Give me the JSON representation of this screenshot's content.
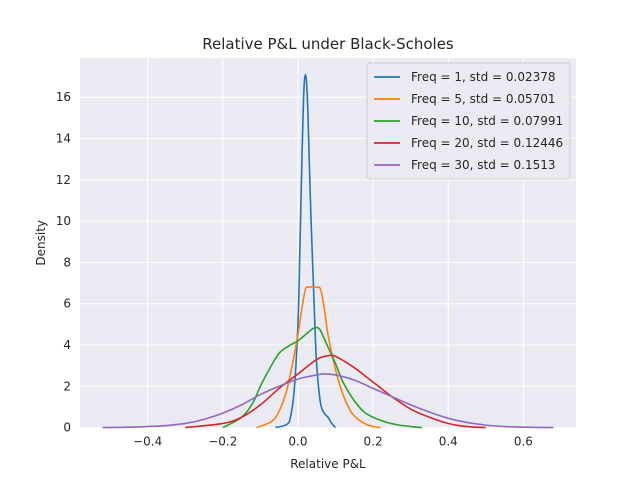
{
  "chart_data": {
    "type": "line",
    "title": "Relative P&L under Black-Scholes",
    "xlabel": "Relative P&L",
    "ylabel": "Density",
    "xlim": [
      -0.58,
      0.74
    ],
    "ylim": [
      0,
      17.9
    ],
    "x_ticks": [
      -0.4,
      -0.2,
      0.0,
      0.2,
      0.4,
      0.6
    ],
    "x_tick_labels": [
      "−0.4",
      "−0.2",
      "0.0",
      "0.2",
      "0.4",
      "0.6"
    ],
    "y_ticks": [
      0,
      2,
      4,
      6,
      8,
      10,
      12,
      14,
      16
    ],
    "y_tick_labels": [
      "0",
      "2",
      "4",
      "6",
      "8",
      "10",
      "12",
      "14",
      "16"
    ],
    "grid": true,
    "legend_position": "top-right",
    "series": [
      {
        "name": "Freq = 1, std = 0.02378",
        "color": "#1f77b4",
        "x": [
          -0.06,
          -0.03,
          -0.02,
          -0.01,
          0.0,
          0.005,
          0.01,
          0.015,
          0.02,
          0.025,
          0.03,
          0.035,
          0.04,
          0.045,
          0.05,
          0.06,
          0.07,
          0.08,
          0.09,
          0.1
        ],
        "y": [
          0.0,
          0.15,
          0.5,
          1.8,
          5.0,
          8.5,
          12.5,
          16.0,
          17.1,
          16.0,
          13.0,
          10.0,
          7.5,
          5.0,
          3.0,
          1.2,
          0.7,
          0.5,
          0.2,
          0.0
        ]
      },
      {
        "name": "Freq = 5, std = 0.05701",
        "color": "#ff7f0e",
        "x": [
          -0.11,
          -0.07,
          -0.05,
          -0.03,
          -0.01,
          0.0,
          0.01,
          0.02,
          0.03,
          0.05,
          0.06,
          0.07,
          0.08,
          0.1,
          0.12,
          0.14,
          0.16,
          0.19,
          0.22
        ],
        "y": [
          0.0,
          0.3,
          0.8,
          1.8,
          3.5,
          4.5,
          5.7,
          6.7,
          6.8,
          6.8,
          6.7,
          5.8,
          4.5,
          2.8,
          1.6,
          0.8,
          0.4,
          0.1,
          0.0
        ]
      },
      {
        "name": "Freq = 10, std = 0.07991",
        "color": "#2ca02c",
        "x": [
          -0.2,
          -0.15,
          -0.12,
          -0.1,
          -0.08,
          -0.05,
          -0.02,
          0.0,
          0.02,
          0.04,
          0.05,
          0.06,
          0.08,
          0.1,
          0.12,
          0.15,
          0.18,
          0.22,
          0.26,
          0.3,
          0.33
        ],
        "y": [
          0.0,
          0.5,
          1.2,
          2.0,
          2.7,
          3.6,
          4.0,
          4.2,
          4.5,
          4.8,
          4.85,
          4.7,
          3.9,
          3.1,
          2.2,
          1.3,
          0.7,
          0.35,
          0.15,
          0.05,
          0.0
        ]
      },
      {
        "name": "Freq = 20, std = 0.12446",
        "color": "#d62728",
        "x": [
          -0.3,
          -0.2,
          -0.15,
          -0.1,
          -0.05,
          0.0,
          0.05,
          0.08,
          0.1,
          0.15,
          0.2,
          0.25,
          0.3,
          0.35,
          0.4,
          0.45,
          0.5
        ],
        "y": [
          0.0,
          0.2,
          0.5,
          1.1,
          1.9,
          2.6,
          3.3,
          3.48,
          3.45,
          2.9,
          2.2,
          1.5,
          0.9,
          0.5,
          0.2,
          0.05,
          0.0
        ]
      },
      {
        "name": "Freq = 30, std = 0.1513",
        "color": "#9467bd",
        "x": [
          -0.52,
          -0.45,
          -0.4,
          -0.35,
          -0.3,
          -0.25,
          -0.2,
          -0.15,
          -0.1,
          -0.05,
          0.0,
          0.05,
          0.07,
          0.1,
          0.15,
          0.2,
          0.25,
          0.3,
          0.35,
          0.4,
          0.45,
          0.5,
          0.55,
          0.6,
          0.68
        ],
        "y": [
          0.0,
          0.02,
          0.05,
          0.1,
          0.2,
          0.4,
          0.7,
          1.1,
          1.6,
          2.0,
          2.35,
          2.55,
          2.6,
          2.55,
          2.3,
          1.9,
          1.5,
          1.1,
          0.75,
          0.45,
          0.25,
          0.12,
          0.05,
          0.02,
          0.0
        ]
      }
    ]
  }
}
